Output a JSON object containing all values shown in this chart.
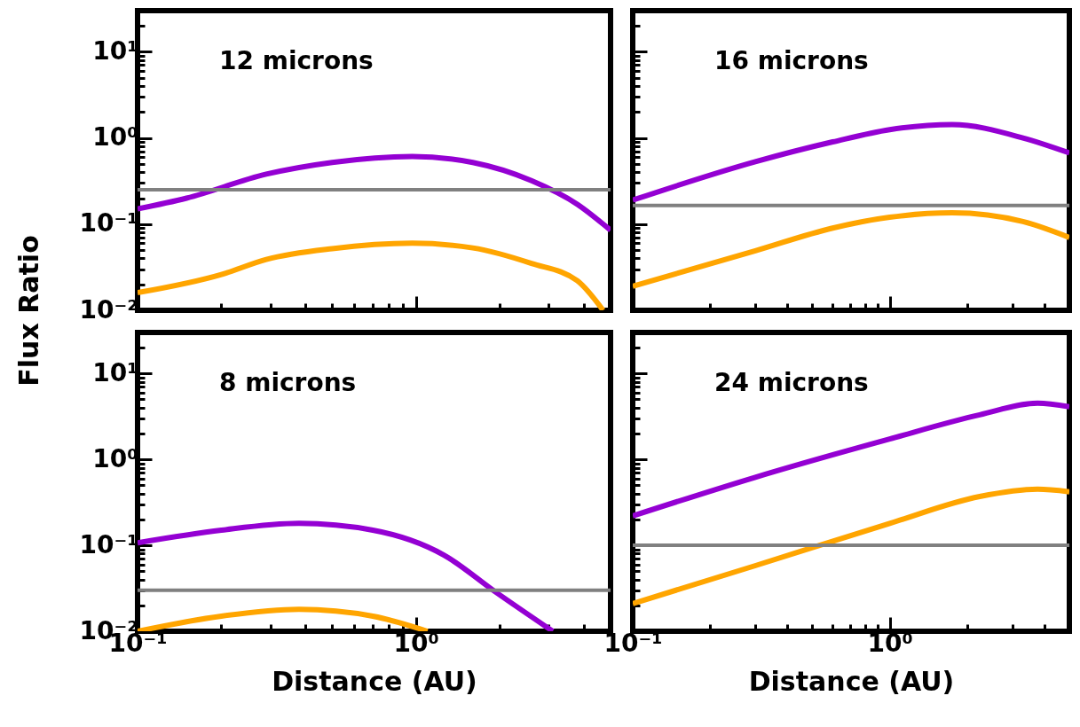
{
  "chart_data": [
    {
      "type": "line",
      "ylabel": "Flux Ratio",
      "annotations": [
        "12 microns"
      ],
      "log": "xy",
      "tick_labels": "y",
      "xlim": [
        0.1,
        5
      ],
      "xticks": [
        {
          "value": 0.1,
          "label": null
        },
        {
          "value": 0.2,
          "label": null
        },
        {
          "value": 0.3,
          "label": null
        },
        {
          "value": 0.4,
          "label": null
        },
        {
          "value": 0.5,
          "label": null
        },
        {
          "value": 0.6,
          "label": null
        },
        {
          "value": 0.7,
          "label": null
        },
        {
          "value": 0.8,
          "label": null
        },
        {
          "value": 0.9,
          "label": null
        },
        {
          "value": 1,
          "label": null
        },
        {
          "value": 2,
          "label": null
        },
        {
          "value": 3,
          "label": null
        },
        {
          "value": 4,
          "label": null
        },
        {
          "value": 5,
          "label": null
        }
      ],
      "ylim": [
        0.01,
        30
      ],
      "yticks": [
        {
          "value": 0.01,
          "label": "10⁻²"
        },
        {
          "value": 0.02,
          "label": null
        },
        {
          "value": 0.03,
          "label": null
        },
        {
          "value": 0.04,
          "label": null
        },
        {
          "value": 0.05,
          "label": null
        },
        {
          "value": 0.06,
          "label": null
        },
        {
          "value": 0.07,
          "label": null
        },
        {
          "value": 0.08,
          "label": null
        },
        {
          "value": 0.09,
          "label": null
        },
        {
          "value": 0.1,
          "label": "10⁻¹"
        },
        {
          "value": 0.2,
          "label": null
        },
        {
          "value": 0.3,
          "label": null
        },
        {
          "value": 0.4,
          "label": null
        },
        {
          "value": 0.5,
          "label": null
        },
        {
          "value": 0.6,
          "label": null
        },
        {
          "value": 0.7,
          "label": null
        },
        {
          "value": 0.8,
          "label": null
        },
        {
          "value": 0.9,
          "label": null
        },
        {
          "value": 1,
          "label": "10⁰"
        },
        {
          "value": 2,
          "label": null
        },
        {
          "value": 3,
          "label": null
        },
        {
          "value": 4,
          "label": null
        },
        {
          "value": 5,
          "label": null
        },
        {
          "value": 6,
          "label": null
        },
        {
          "value": 7,
          "label": null
        },
        {
          "value": 8,
          "label": null
        },
        {
          "value": 9,
          "label": null
        },
        {
          "value": 10,
          "label": "10¹"
        },
        {
          "value": 20,
          "label": null
        },
        {
          "value": 30,
          "label": null
        }
      ],
      "series": [
        {
          "color": "#9400d3",
          "x": [
            0.1,
            0.15,
            0.29,
            0.5,
            0.97,
            1.6,
            2.6,
            3.8,
            5
          ],
          "values": [
            0.15,
            0.2,
            0.38,
            0.52,
            0.61,
            0.52,
            0.32,
            0.17,
            0.085
          ]
        },
        {
          "color": "#ffa500",
          "x": [
            0.1,
            0.2,
            0.29,
            0.5,
            0.97,
            1.6,
            2.6,
            3.8,
            4.7
          ],
          "values": [
            0.016,
            0.026,
            0.039,
            0.052,
            0.06,
            0.053,
            0.035,
            0.022,
            0.01
          ]
        }
      ],
      "ref_lines": [
        {
          "axis": "y",
          "value": 0.25,
          "color": "#808080"
        }
      ]
    },
    {
      "type": "line",
      "annotations": [
        "16 microns"
      ],
      "log": "xy",
      "tick_labels": false,
      "xlim": [
        0.1,
        5
      ],
      "xticks": [
        {
          "value": 0.1,
          "label": null
        },
        {
          "value": 0.2,
          "label": null
        },
        {
          "value": 0.3,
          "label": null
        },
        {
          "value": 0.4,
          "label": null
        },
        {
          "value": 0.5,
          "label": null
        },
        {
          "value": 0.6,
          "label": null
        },
        {
          "value": 0.7,
          "label": null
        },
        {
          "value": 0.8,
          "label": null
        },
        {
          "value": 0.9,
          "label": null
        },
        {
          "value": 1,
          "label": null
        },
        {
          "value": 2,
          "label": null
        },
        {
          "value": 3,
          "label": null
        },
        {
          "value": 4,
          "label": null
        },
        {
          "value": 5,
          "label": null
        }
      ],
      "ylim": [
        0.01,
        30
      ],
      "yticks": [
        {
          "value": 0.01,
          "label": null
        },
        {
          "value": 0.02,
          "label": null
        },
        {
          "value": 0.03,
          "label": null
        },
        {
          "value": 0.04,
          "label": null
        },
        {
          "value": 0.05,
          "label": null
        },
        {
          "value": 0.06,
          "label": null
        },
        {
          "value": 0.07,
          "label": null
        },
        {
          "value": 0.08,
          "label": null
        },
        {
          "value": 0.09,
          "label": null
        },
        {
          "value": 0.1,
          "label": null
        },
        {
          "value": 0.2,
          "label": null
        },
        {
          "value": 0.3,
          "label": null
        },
        {
          "value": 0.4,
          "label": null
        },
        {
          "value": 0.5,
          "label": null
        },
        {
          "value": 0.6,
          "label": null
        },
        {
          "value": 0.7,
          "label": null
        },
        {
          "value": 0.8,
          "label": null
        },
        {
          "value": 0.9,
          "label": null
        },
        {
          "value": 1,
          "label": null
        },
        {
          "value": 2,
          "label": null
        },
        {
          "value": 3,
          "label": null
        },
        {
          "value": 4,
          "label": null
        },
        {
          "value": 5,
          "label": null
        },
        {
          "value": 6,
          "label": null
        },
        {
          "value": 7,
          "label": null
        },
        {
          "value": 8,
          "label": null
        },
        {
          "value": 9,
          "label": null
        },
        {
          "value": 10,
          "label": null
        },
        {
          "value": 20,
          "label": null
        },
        {
          "value": 30,
          "label": null
        }
      ],
      "series": [
        {
          "color": "#9400d3",
          "x": [
            0.1,
            0.3,
            0.6,
            1.0,
            1.75,
            3.3,
            5
          ],
          "values": [
            0.19,
            0.53,
            0.9,
            1.25,
            1.43,
            1.0,
            0.67
          ]
        },
        {
          "color": "#ffa500",
          "x": [
            0.1,
            0.3,
            0.6,
            1.0,
            1.75,
            3.3,
            5
          ],
          "values": [
            0.019,
            0.049,
            0.09,
            0.12,
            0.135,
            0.107,
            0.07
          ]
        }
      ],
      "ref_lines": [
        {
          "axis": "y",
          "value": 0.165,
          "color": "#808080"
        }
      ]
    },
    {
      "type": "line",
      "xlabel": "Distance (AU)",
      "annotations": [
        "8 microns"
      ],
      "log": "xy",
      "xlim": [
        0.1,
        5
      ],
      "xticks": [
        {
          "value": 0.1,
          "label": "10⁻¹"
        },
        {
          "value": 0.2,
          "label": null
        },
        {
          "value": 0.3,
          "label": null
        },
        {
          "value": 0.4,
          "label": null
        },
        {
          "value": 0.5,
          "label": null
        },
        {
          "value": 0.6,
          "label": null
        },
        {
          "value": 0.7,
          "label": null
        },
        {
          "value": 0.8,
          "label": null
        },
        {
          "value": 0.9,
          "label": null
        },
        {
          "value": 1,
          "label": "10⁰"
        },
        {
          "value": 2,
          "label": null
        },
        {
          "value": 3,
          "label": null
        },
        {
          "value": 4,
          "label": null
        },
        {
          "value": 5,
          "label": null
        }
      ],
      "ylim": [
        0.01,
        30
      ],
      "yticks": [
        {
          "value": 0.01,
          "label": "10⁻²"
        },
        {
          "value": 0.02,
          "label": null
        },
        {
          "value": 0.03,
          "label": null
        },
        {
          "value": 0.04,
          "label": null
        },
        {
          "value": 0.05,
          "label": null
        },
        {
          "value": 0.06,
          "label": null
        },
        {
          "value": 0.07,
          "label": null
        },
        {
          "value": 0.08,
          "label": null
        },
        {
          "value": 0.09,
          "label": null
        },
        {
          "value": 0.1,
          "label": "10⁻¹"
        },
        {
          "value": 0.2,
          "label": null
        },
        {
          "value": 0.3,
          "label": null
        },
        {
          "value": 0.4,
          "label": null
        },
        {
          "value": 0.5,
          "label": null
        },
        {
          "value": 0.6,
          "label": null
        },
        {
          "value": 0.7,
          "label": null
        },
        {
          "value": 0.8,
          "label": null
        },
        {
          "value": 0.9,
          "label": null
        },
        {
          "value": 1,
          "label": "10⁰"
        },
        {
          "value": 2,
          "label": null
        },
        {
          "value": 3,
          "label": null
        },
        {
          "value": 4,
          "label": null
        },
        {
          "value": 5,
          "label": null
        },
        {
          "value": 6,
          "label": null
        },
        {
          "value": 7,
          "label": null
        },
        {
          "value": 8,
          "label": null
        },
        {
          "value": 9,
          "label": null
        },
        {
          "value": 10,
          "label": "10¹"
        },
        {
          "value": 20,
          "label": null
        },
        {
          "value": 30,
          "label": null
        }
      ],
      "series": [
        {
          "color": "#9400d3",
          "x": [
            0.1,
            0.2,
            0.38,
            0.7,
            1.26,
            1.95,
            3.1
          ],
          "values": [
            0.107,
            0.15,
            0.18,
            0.15,
            0.077,
            0.028,
            0.01
          ]
        },
        {
          "color": "#ffa500",
          "x": [
            0.1,
            0.2,
            0.38,
            0.7,
            1.1
          ],
          "values": [
            0.01,
            0.015,
            0.018,
            0.015,
            0.01
          ]
        }
      ],
      "ref_lines": [
        {
          "axis": "y",
          "value": 0.03,
          "color": "#808080"
        }
      ]
    },
    {
      "type": "line",
      "xlabel": "Distance (AU)",
      "annotations": [
        "24 microns"
      ],
      "log": "xy",
      "tick_labels": "x",
      "xlim": [
        0.1,
        5
      ],
      "xticks": [
        {
          "value": 0.1,
          "label": "10⁻¹"
        },
        {
          "value": 0.2,
          "label": null
        },
        {
          "value": 0.3,
          "label": null
        },
        {
          "value": 0.4,
          "label": null
        },
        {
          "value": 0.5,
          "label": null
        },
        {
          "value": 0.6,
          "label": null
        },
        {
          "value": 0.7,
          "label": null
        },
        {
          "value": 0.8,
          "label": null
        },
        {
          "value": 0.9,
          "label": null
        },
        {
          "value": 1,
          "label": "10⁰"
        },
        {
          "value": 2,
          "label": null
        },
        {
          "value": 3,
          "label": null
        },
        {
          "value": 4,
          "label": null
        },
        {
          "value": 5,
          "label": null
        }
      ],
      "ylim": [
        0.01,
        30
      ],
      "yticks": [
        {
          "value": 0.01,
          "label": null
        },
        {
          "value": 0.02,
          "label": null
        },
        {
          "value": 0.03,
          "label": null
        },
        {
          "value": 0.04,
          "label": null
        },
        {
          "value": 0.05,
          "label": null
        },
        {
          "value": 0.06,
          "label": null
        },
        {
          "value": 0.07,
          "label": null
        },
        {
          "value": 0.08,
          "label": null
        },
        {
          "value": 0.09,
          "label": null
        },
        {
          "value": 0.1,
          "label": null
        },
        {
          "value": 0.2,
          "label": null
        },
        {
          "value": 0.3,
          "label": null
        },
        {
          "value": 0.4,
          "label": null
        },
        {
          "value": 0.5,
          "label": null
        },
        {
          "value": 0.6,
          "label": null
        },
        {
          "value": 0.7,
          "label": null
        },
        {
          "value": 0.8,
          "label": null
        },
        {
          "value": 0.9,
          "label": null
        },
        {
          "value": 1,
          "label": null
        },
        {
          "value": 2,
          "label": null
        },
        {
          "value": 3,
          "label": null
        },
        {
          "value": 4,
          "label": null
        },
        {
          "value": 5,
          "label": null
        },
        {
          "value": 6,
          "label": null
        },
        {
          "value": 7,
          "label": null
        },
        {
          "value": 8,
          "label": null
        },
        {
          "value": 9,
          "label": null
        },
        {
          "value": 10,
          "label": null
        },
        {
          "value": 20,
          "label": null
        },
        {
          "value": 30,
          "label": null
        }
      ],
      "series": [
        {
          "color": "#9400d3",
          "x": [
            0.1,
            0.3,
            1.0,
            2.24,
            3.76,
            5
          ],
          "values": [
            0.22,
            0.62,
            1.73,
            3.3,
            4.5,
            4.1
          ]
        },
        {
          "color": "#ffa500",
          "x": [
            0.1,
            0.3,
            1.0,
            2.24,
            3.76,
            5
          ],
          "values": [
            0.021,
            0.058,
            0.18,
            0.37,
            0.45,
            0.42
          ]
        }
      ],
      "ref_lines": [
        {
          "axis": "y",
          "value": 0.1,
          "color": "#808080"
        }
      ]
    }
  ]
}
